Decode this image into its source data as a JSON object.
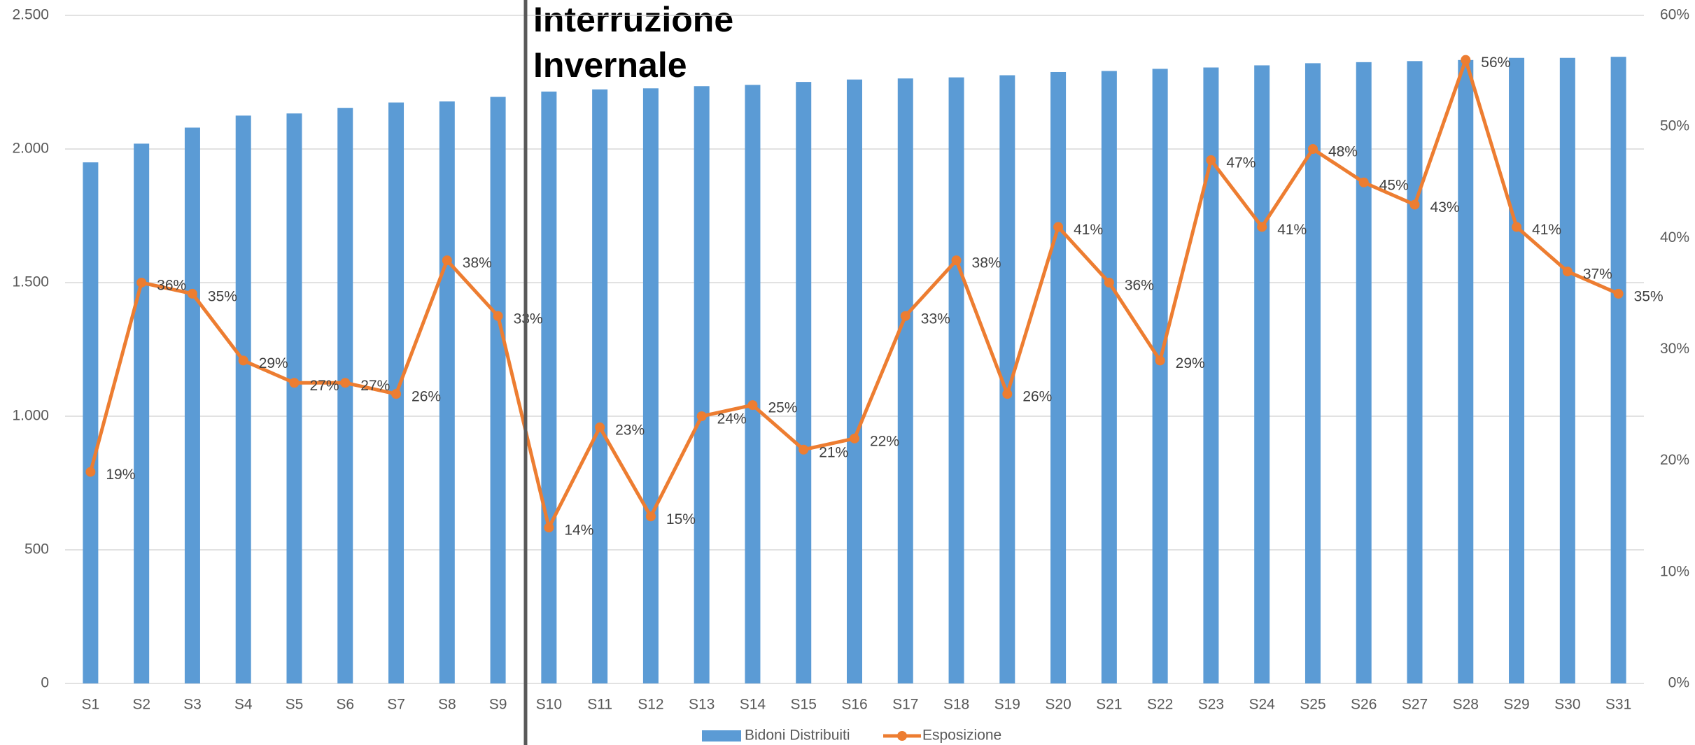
{
  "chart_data": {
    "type": "bar_line",
    "annotation": {
      "lines": [
        "Interruzione",
        "Invernale"
      ]
    },
    "categories": [
      "S1",
      "S2",
      "S3",
      "S4",
      "S5",
      "S6",
      "S7",
      "S8",
      "S9",
      "S10",
      "S11",
      "S12",
      "S13",
      "S14",
      "S15",
      "S16",
      "S17",
      "S18",
      "S19",
      "S20",
      "S21",
      "S22",
      "S23",
      "S24",
      "S25",
      "S26",
      "S27",
      "S28",
      "S29",
      "S30",
      "S31"
    ],
    "series": [
      {
        "name": "Bidoni Distribuiti",
        "type": "bar",
        "color": "#5b9bd5",
        "axis": "y",
        "values": [
          1950,
          2020,
          2080,
          2125,
          2133,
          2154,
          2174,
          2178,
          2195,
          2215,
          2223,
          2227,
          2235,
          2240,
          2251,
          2260,
          2264,
          2268,
          2276,
          2288,
          2292,
          2300,
          2305,
          2313,
          2321,
          2325,
          2329,
          2333,
          2341,
          2341,
          2345
        ]
      },
      {
        "name": "Esposizione",
        "type": "line",
        "color": "#ed7d31",
        "axis": "y2",
        "values": [
          19,
          36,
          35,
          29,
          27,
          27,
          26,
          38,
          33,
          14,
          23,
          15,
          24,
          25,
          21,
          22,
          33,
          38,
          26,
          41,
          36,
          29,
          47,
          41,
          48,
          45,
          43,
          56,
          41,
          37,
          35
        ],
        "value_labels": [
          "19%",
          "36%",
          "35%",
          "29%",
          "27%",
          "27%",
          "26%",
          "38%",
          "33%",
          "14%",
          "23%",
          "15%",
          "24%",
          "25%",
          "21%",
          "22%",
          "33%",
          "38%",
          "26%",
          "41%",
          "36%",
          "29%",
          "47%",
          "41%",
          "48%",
          "45%",
          "43%",
          "56%",
          "41%",
          "37%",
          "35%"
        ]
      }
    ],
    "ylim": [
      0,
      2500
    ],
    "yticks": [
      0,
      500,
      {
        "value": 1000,
        "label": "1.000"
      },
      {
        "value": 1500,
        "label": "1.500"
      },
      {
        "value": 2000,
        "label": "2.000"
      },
      {
        "value": 2500,
        "label": "2.500"
      }
    ],
    "y2lim": [
      0,
      60
    ],
    "y2ticks": [
      {
        "value": 0,
        "label": "0%"
      },
      {
        "value": 10,
        "label": "10%"
      },
      {
        "value": 20,
        "label": "20%"
      },
      {
        "value": 30,
        "label": "30%"
      },
      {
        "value": 40,
        "label": "40%"
      },
      {
        "value": 50,
        "label": "50%"
      },
      {
        "value": 60,
        "label": "60%"
      }
    ],
    "grid": true,
    "legend": "bottom"
  }
}
